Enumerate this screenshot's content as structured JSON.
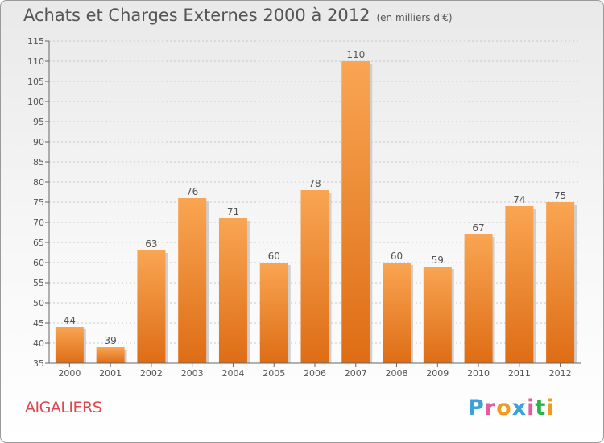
{
  "header": {
    "title": "Achats et Charges Externes 2000 à 2012",
    "subtitle": "(en milliers d'€)"
  },
  "location_label": "AIGALIERS",
  "brand": {
    "text": "Proxiti",
    "letters": [
      "P",
      "r",
      "o",
      "x",
      "i",
      "t",
      "i"
    ],
    "colors": [
      "#3aa2d8",
      "#e75a9c",
      "#f29a1e",
      "#3aa2d8",
      "#e75a9c",
      "#2bb24c",
      "#f29a1e"
    ]
  },
  "colors": {
    "bar_top": "#f9a553",
    "bar_bottom": "#de6d15",
    "grid": "#c9c9c9",
    "axis": "#666666"
  },
  "chart_data": {
    "type": "bar",
    "categories": [
      "2000",
      "2001",
      "2002",
      "2003",
      "2004",
      "2005",
      "2006",
      "2007",
      "2008",
      "2009",
      "2010",
      "2011",
      "2012"
    ],
    "values": [
      44,
      39,
      63,
      76,
      71,
      60,
      78,
      110,
      60,
      59,
      67,
      74,
      75
    ],
    "title": "Achats et Charges Externes 2000 à 2012",
    "ylim": [
      35,
      115
    ],
    "yticks": [
      35,
      40,
      45,
      50,
      55,
      60,
      65,
      70,
      75,
      80,
      85,
      90,
      95,
      100,
      105,
      110,
      115
    ],
    "grid": true,
    "data_labels": true
  }
}
